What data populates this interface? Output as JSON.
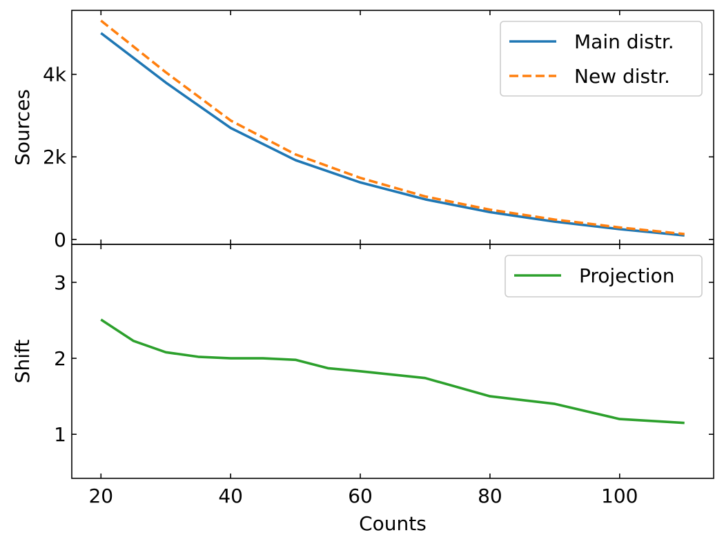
{
  "chart_data": [
    {
      "type": "line",
      "panel": "top",
      "xlabel": "",
      "ylabel": "Sources",
      "xlim": [
        15.5,
        114.5
      ],
      "ylim": [
        -120,
        5550
      ],
      "x_ticks": [
        20,
        40,
        60,
        80,
        100
      ],
      "y_ticks": [
        0,
        2000,
        4000
      ],
      "y_tick_labels": [
        "0",
        "2k",
        "4k"
      ],
      "legend_position": "top-right",
      "series": [
        {
          "name": "Main distr.",
          "color": "#1f77b4",
          "style": "solid",
          "x": [
            20,
            30,
            40,
            50,
            60,
            70,
            80,
            90,
            100,
            110
          ],
          "y": [
            5000,
            3800,
            2700,
            1920,
            1380,
            970,
            660,
            430,
            250,
            95
          ]
        },
        {
          "name": "New distr.",
          "color": "#ff7f0e",
          "style": "dashed",
          "x": [
            20,
            30,
            40,
            50,
            60,
            70,
            80,
            90,
            100,
            110
          ],
          "y": [
            5300,
            4050,
            2880,
            2060,
            1490,
            1040,
            720,
            480,
            290,
            130
          ]
        }
      ]
    },
    {
      "type": "line",
      "panel": "bottom",
      "xlabel": "Counts",
      "ylabel": "Shift",
      "xlim": [
        15.5,
        114.5
      ],
      "ylim": [
        0.42,
        3.5
      ],
      "x_ticks": [
        20,
        40,
        60,
        80,
        100
      ],
      "x_tick_labels": [
        "20",
        "40",
        "60",
        "80",
        "100"
      ],
      "y_ticks": [
        1,
        2,
        3
      ],
      "y_tick_labels": [
        "1",
        "2",
        "3"
      ],
      "legend_position": "top-right",
      "series": [
        {
          "name": "Projection",
          "color": "#2ca02c",
          "style": "solid",
          "x": [
            20,
            25,
            30,
            35,
            40,
            45,
            50,
            55,
            60,
            70,
            80,
            90,
            100,
            110
          ],
          "y": [
            2.51,
            2.23,
            2.08,
            2.02,
            2.0,
            2.0,
            1.98,
            1.87,
            1.83,
            1.74,
            1.5,
            1.4,
            1.2,
            1.15
          ]
        }
      ]
    }
  ]
}
